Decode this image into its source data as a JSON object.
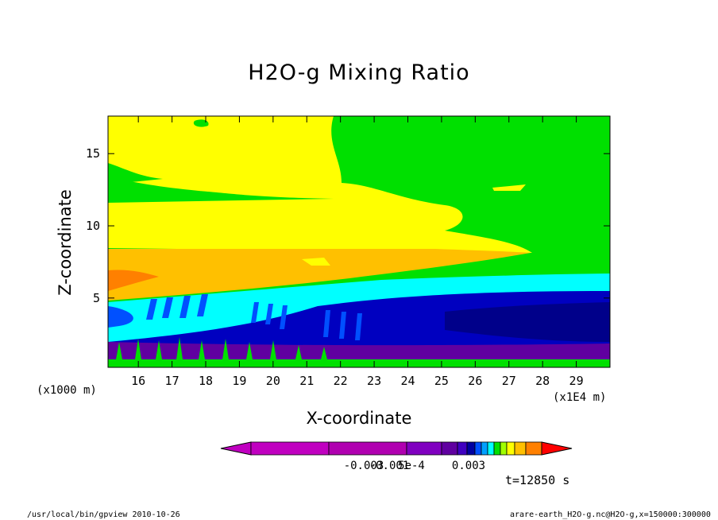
{
  "chart_data": {
    "type": "heatmap",
    "title": "H2O-g Mixing Ratio",
    "xlabel": "X-coordinate",
    "ylabel": "Z-coordinate",
    "x_unit_label": "(x1E4 m)",
    "y_unit_label": "(x1000 m)",
    "x_ticks": [
      "16",
      "17",
      "18",
      "19",
      "20",
      "21",
      "22",
      "23",
      "24",
      "25",
      "26",
      "27",
      "28",
      "29"
    ],
    "y_ticks": [
      "5",
      "10",
      "15"
    ],
    "xlim": [
      15.1,
      30.0
    ],
    "ylim": [
      0.2,
      17.6
    ],
    "grid": false,
    "colorbar": {
      "labels": [
        "-0.003",
        "-0.001",
        "5e-4",
        "0.003"
      ],
      "colors": [
        "#c000c0",
        "#b000b0",
        "#8000c0",
        "#6000a0",
        "#4000c0",
        "#0000a0",
        "#0050ff",
        "#00a0ff",
        "#00ffff",
        "#00e000",
        "#a0ff00",
        "#ffff00",
        "#ffc000",
        "#ff8000",
        "#ff0000"
      ]
    },
    "bands": [
      {
        "level": "upper",
        "color": "#00e000",
        "description_in_data_units": {
          "z_from": 12,
          "z_to": 17.6
        }
      },
      {
        "level": "upper-mid",
        "color": "#ffff00",
        "description_in_data_units": {
          "z_from": 8.2,
          "z_to": 12
        }
      },
      {
        "level": "mid",
        "color": "#ffc000",
        "description_in_data_units": {
          "z_from": 6.5,
          "z_to": 8.2
        }
      },
      {
        "level": "lower-mid",
        "color": "#00ffff",
        "description_in_data_units": {
          "z_from": 4.0,
          "z_to": 6.5
        }
      },
      {
        "level": "low",
        "color": "#0000c0",
        "description_in_data_units": {
          "z_from": 1.5,
          "z_to": 4.0
        }
      },
      {
        "level": "near-surface",
        "color": "#8000c0",
        "description_in_data_units": {
          "z_from": 0.2,
          "z_to": 1.5
        }
      }
    ]
  },
  "time_label": "t=12850 s",
  "footer_left": "/usr/local/bin/gpview  2010-10-26",
  "footer_right": "arare-earth_H2O-g.nc@H2O-g,x=150000:300000"
}
